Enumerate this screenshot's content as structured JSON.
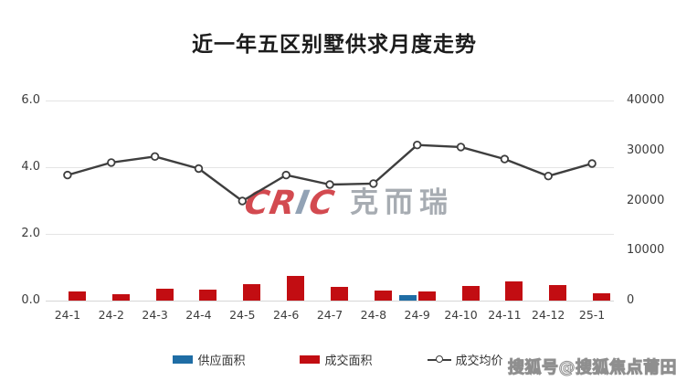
{
  "page": {
    "title": "近一年五区别墅供求月度走势"
  },
  "chart_data": {
    "type": "combo-bar-line",
    "title": "近一年五区别墅供求月度走势",
    "categories": [
      "24-1",
      "24-2",
      "24-3",
      "24-4",
      "24-5",
      "24-6",
      "24-7",
      "24-8",
      "24-9",
      "24-10",
      "24-11",
      "24-12",
      "25-1"
    ],
    "series": [
      {
        "name": "供应面积",
        "type": "bar",
        "axis": "left",
        "color": "#1f6da5",
        "values": [
          0,
          0,
          0,
          0,
          0,
          0,
          0,
          0,
          0.16,
          0,
          0,
          0,
          0
        ]
      },
      {
        "name": "成交面积",
        "type": "bar",
        "axis": "left",
        "color": "#c20d12",
        "values": [
          0.27,
          0.19,
          0.36,
          0.34,
          0.5,
          0.73,
          0.41,
          0.3,
          0.27,
          0.44,
          0.58,
          0.47,
          0.22
        ]
      },
      {
        "name": "成交均价",
        "type": "line",
        "axis": "right",
        "color": "#3e3e3e",
        "values": [
          25100,
          27600,
          28800,
          26400,
          19900,
          25100,
          23200,
          23400,
          31100,
          30700,
          28300,
          24900,
          27400
        ]
      }
    ],
    "left_axis": {
      "min": 0,
      "max": 6,
      "tick_values": [
        0,
        2,
        4,
        6
      ],
      "tick_labels": [
        "0.0",
        "2.0",
        "4.0",
        "6.0"
      ]
    },
    "right_axis": {
      "min": 0,
      "max": 40000,
      "tick_values": [
        0,
        10000,
        20000,
        30000,
        40000
      ],
      "tick_labels": [
        "0",
        "10000",
        "20000",
        "30000",
        "40000"
      ]
    },
    "legend": {
      "position": "bottom",
      "items": [
        "供应面积",
        "成交面积",
        "成交均价"
      ]
    },
    "grid": true
  },
  "watermarks": {
    "center": {
      "latin_pre": "CR",
      "latin_i": "I",
      "latin_post": "C",
      "cn": "克而瑞"
    },
    "corner": "搜狐号@搜狐焦点莆田站"
  }
}
